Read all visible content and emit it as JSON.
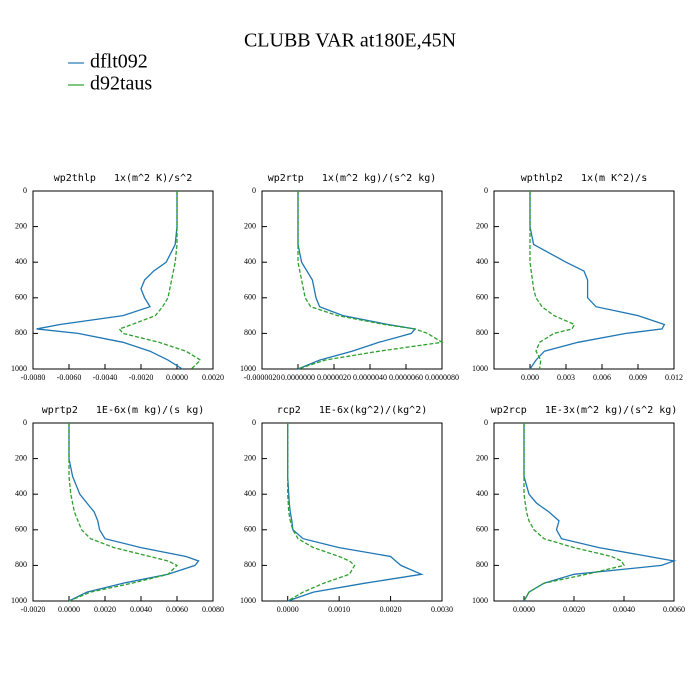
{
  "title": "CLUBB VAR at180E,45N",
  "chart_data": [
    {
      "type": "line",
      "title": "wp2thlp   1x(m^2 K)/s^2",
      "y": [
        0,
        100,
        200,
        300,
        400,
        450,
        500,
        550,
        600,
        650,
        700,
        750,
        775,
        800,
        850,
        900,
        950,
        1000
      ],
      "xlim": [
        -0.008,
        0.002
      ],
      "xticks": [
        {
          "value": -0.008,
          "label": "-0.0080"
        },
        {
          "value": -0.006,
          "label": "-0.0060"
        },
        {
          "value": -0.004,
          "label": "-0.0040"
        },
        {
          "value": -0.002,
          "label": "-0.0020"
        },
        {
          "value": 0,
          "label": "0.0000"
        },
        {
          "value": 0.002,
          "label": "0.0020"
        }
      ],
      "ylim": [
        1000,
        0
      ],
      "yticks": [
        0,
        200,
        400,
        600,
        800,
        1000
      ],
      "series": [
        {
          "name": "dflt092",
          "color": "#1f77b4",
          "linestyle": "solid",
          "values": [
            0,
            0,
            0,
            -0.0001,
            -0.0006,
            -0.0013,
            -0.0018,
            -0.002,
            -0.0018,
            -0.0015,
            -0.003,
            -0.0065,
            -0.0078,
            -0.0055,
            -0.003,
            -0.0015,
            -0.0005,
            0.0003
          ]
        },
        {
          "name": "d92taus",
          "color": "#2ca02c",
          "linestyle": "dashed",
          "values": [
            0,
            0,
            0,
            0,
            -0.0001,
            -0.0002,
            -0.0003,
            -0.0004,
            -0.0005,
            -0.0008,
            -0.0012,
            -0.0025,
            -0.0032,
            -0.003,
            -0.001,
            0.0005,
            0.0013,
            0.0008
          ]
        }
      ]
    },
    {
      "type": "line",
      "title": "wp2rtp   1x(m^2 kg)/(s^2 kg)",
      "y": [
        0,
        100,
        200,
        300,
        400,
        450,
        500,
        550,
        600,
        650,
        700,
        750,
        775,
        800,
        850,
        900,
        950,
        1000
      ],
      "xlim": [
        -2e-06,
        8e-06
      ],
      "xticks": [
        {
          "value": -2e-06,
          "label": "-0.0000020"
        },
        {
          "value": 0,
          "label": "0.0000000"
        },
        {
          "value": 2e-06,
          "label": "0.0000020"
        },
        {
          "value": 4e-06,
          "label": "0.0000040"
        },
        {
          "value": 6e-06,
          "label": "0.0000060"
        },
        {
          "value": 8e-06,
          "label": "0.0000080"
        }
      ],
      "ylim": [
        1000,
        0
      ],
      "yticks": [
        0,
        200,
        400,
        600,
        800,
        1000
      ],
      "series": [
        {
          "name": "dflt092",
          "color": "#1f77b4",
          "linestyle": "solid",
          "values": [
            0,
            0,
            0,
            0,
            2e-07,
            5e-07,
            8e-07,
            9e-07,
            1e-06,
            1.2e-06,
            2.5e-06,
            5e-06,
            6.5e-06,
            6.3e-06,
            4.5e-06,
            3e-06,
            1.2e-06,
            0
          ]
        },
        {
          "name": "d92taus",
          "color": "#2ca02c",
          "linestyle": "dashed",
          "values": [
            0,
            0,
            0,
            0,
            0,
            1e-07,
            2e-07,
            3e-07,
            4e-07,
            7e-07,
            2.2e-06,
            4.8e-06,
            6.5e-06,
            7.2e-06,
            8e-06,
            4.5e-06,
            1.5e-06,
            0
          ]
        }
      ]
    },
    {
      "type": "line",
      "title": "wpthlp2   1x(m K^2)/s",
      "y": [
        0,
        100,
        200,
        300,
        400,
        450,
        500,
        550,
        600,
        650,
        700,
        750,
        775,
        800,
        850,
        900,
        950,
        1000
      ],
      "xlim": [
        -0.003,
        0.012
      ],
      "xticks": [
        {
          "value": 0,
          "label": "0.000"
        },
        0.003,
        0.006,
        0.009,
        0.012
      ],
      "ylim": [
        1000,
        0
      ],
      "yticks": [
        0,
        200,
        400,
        600,
        800,
        1000
      ],
      "series": [
        {
          "name": "dflt092",
          "color": "#1f77b4",
          "linestyle": "solid",
          "values": [
            0,
            0,
            0,
            0.0003,
            0.003,
            0.0045,
            0.0048,
            0.0048,
            0.0048,
            0.0055,
            0.009,
            0.0112,
            0.011,
            0.008,
            0.004,
            0.0012,
            0.0005,
            0
          ]
        },
        {
          "name": "d92taus",
          "color": "#2ca02c",
          "linestyle": "dashed",
          "values": [
            0,
            0,
            0,
            0,
            0,
            0.0001,
            0.0002,
            0.0003,
            0.0005,
            0.001,
            0.002,
            0.0037,
            0.0035,
            0.002,
            0.0008,
            0.0005,
            0.0009,
            0.0008
          ]
        }
      ]
    },
    {
      "type": "line",
      "title": "wprtp2   1E-6x(m kg)/(s kg)",
      "y": [
        0,
        100,
        200,
        300,
        400,
        450,
        500,
        550,
        600,
        650,
        700,
        750,
        775,
        800,
        850,
        900,
        950,
        1000
      ],
      "xlim": [
        -0.002,
        0.008
      ],
      "xticks": [
        {
          "value": -0.002,
          "label": "-0.0020"
        },
        {
          "value": 0,
          "label": "0.0000"
        },
        {
          "value": 0.002,
          "label": "0.0020"
        },
        {
          "value": 0.004,
          "label": "0.0040"
        },
        {
          "value": 0.006,
          "label": "0.0060"
        },
        {
          "value": 0.008,
          "label": "0.0080"
        }
      ],
      "ylim": [
        1000,
        0
      ],
      "yticks": [
        0,
        200,
        400,
        600,
        800,
        1000
      ],
      "series": [
        {
          "name": "dflt092",
          "color": "#1f77b4",
          "linestyle": "solid",
          "values": [
            0,
            0,
            0,
            0.0002,
            0.0006,
            0.001,
            0.0014,
            0.0016,
            0.0017,
            0.002,
            0.004,
            0.0065,
            0.0072,
            0.007,
            0.0055,
            0.003,
            0.001,
            0
          ]
        },
        {
          "name": "d92taus",
          "color": "#2ca02c",
          "linestyle": "dashed",
          "values": [
            0,
            0,
            0,
            0,
            0.0001,
            0.0002,
            0.0003,
            0.0005,
            0.0007,
            0.0012,
            0.0025,
            0.0045,
            0.0055,
            0.006,
            0.0055,
            0.0035,
            0.0012,
            0
          ]
        }
      ]
    },
    {
      "type": "line",
      "title": "rcp2   1E-6x(kg^2)/(kg^2)",
      "y": [
        0,
        100,
        200,
        300,
        400,
        450,
        500,
        550,
        600,
        650,
        700,
        750,
        775,
        800,
        850,
        900,
        950,
        1000
      ],
      "xlim": [
        -0.0005,
        0.003
      ],
      "xticks": [
        {
          "value": 0,
          "label": "0.0000"
        },
        {
          "value": 0.001,
          "label": "0.0010"
        },
        {
          "value": 0.002,
          "label": "0.0020"
        },
        {
          "value": 0.003,
          "label": "0.0030"
        }
      ],
      "ylim": [
        1000,
        0
      ],
      "yticks": [
        0,
        200,
        400,
        600,
        800,
        1000
      ],
      "series": [
        {
          "name": "dflt092",
          "color": "#1f77b4",
          "linestyle": "solid",
          "values": [
            0,
            0,
            0,
            0,
            2e-05,
            3e-05,
            5e-05,
            8e-05,
            0.0001,
            0.0003,
            0.001,
            0.002,
            0.0021,
            0.0022,
            0.0026,
            0.0015,
            0.0005,
            0
          ]
        },
        {
          "name": "d92taus",
          "color": "#2ca02c",
          "linestyle": "dashed",
          "values": [
            0,
            0,
            0,
            0,
            0,
            1e-05,
            2e-05,
            5e-05,
            0.0001,
            0.0002,
            0.0005,
            0.001,
            0.0012,
            0.0013,
            0.0012,
            0.0007,
            0.0003,
            0
          ]
        }
      ]
    },
    {
      "type": "line",
      "title": "wp2rcp   1E-3x(m^2 kg)/(s^2 kg)",
      "y": [
        0,
        100,
        200,
        300,
        400,
        450,
        500,
        550,
        600,
        650,
        700,
        750,
        775,
        800,
        850,
        900,
        950,
        1000
      ],
      "xlim": [
        -0.0012,
        0.006
      ],
      "xticks": [
        {
          "value": 0,
          "label": "0.0000"
        },
        {
          "value": 0.002,
          "label": "0.0020"
        },
        {
          "value": 0.004,
          "label": "0.0040"
        },
        {
          "value": 0.006,
          "label": "0.0060"
        }
      ],
      "ylim": [
        1000,
        0
      ],
      "yticks": [
        0,
        200,
        400,
        600,
        800,
        1000
      ],
      "series": [
        {
          "name": "dflt092",
          "color": "#1f77b4",
          "linestyle": "solid",
          "values": [
            0,
            0,
            0,
            0,
            0.0002,
            0.0005,
            0.001,
            0.0014,
            0.0013,
            0.0015,
            0.003,
            0.005,
            0.006,
            0.0055,
            0.002,
            0.0008,
            0.0002,
            0
          ]
        },
        {
          "name": "d92taus",
          "color": "#2ca02c",
          "linestyle": "dashed",
          "values": [
            0,
            0,
            0,
            0,
            0,
            5e-05,
            0.0001,
            0.0002,
            0.0004,
            0.0008,
            0.002,
            0.0035,
            0.0039,
            0.004,
            0.0025,
            0.0008,
            0.0002,
            0
          ]
        }
      ]
    }
  ]
}
